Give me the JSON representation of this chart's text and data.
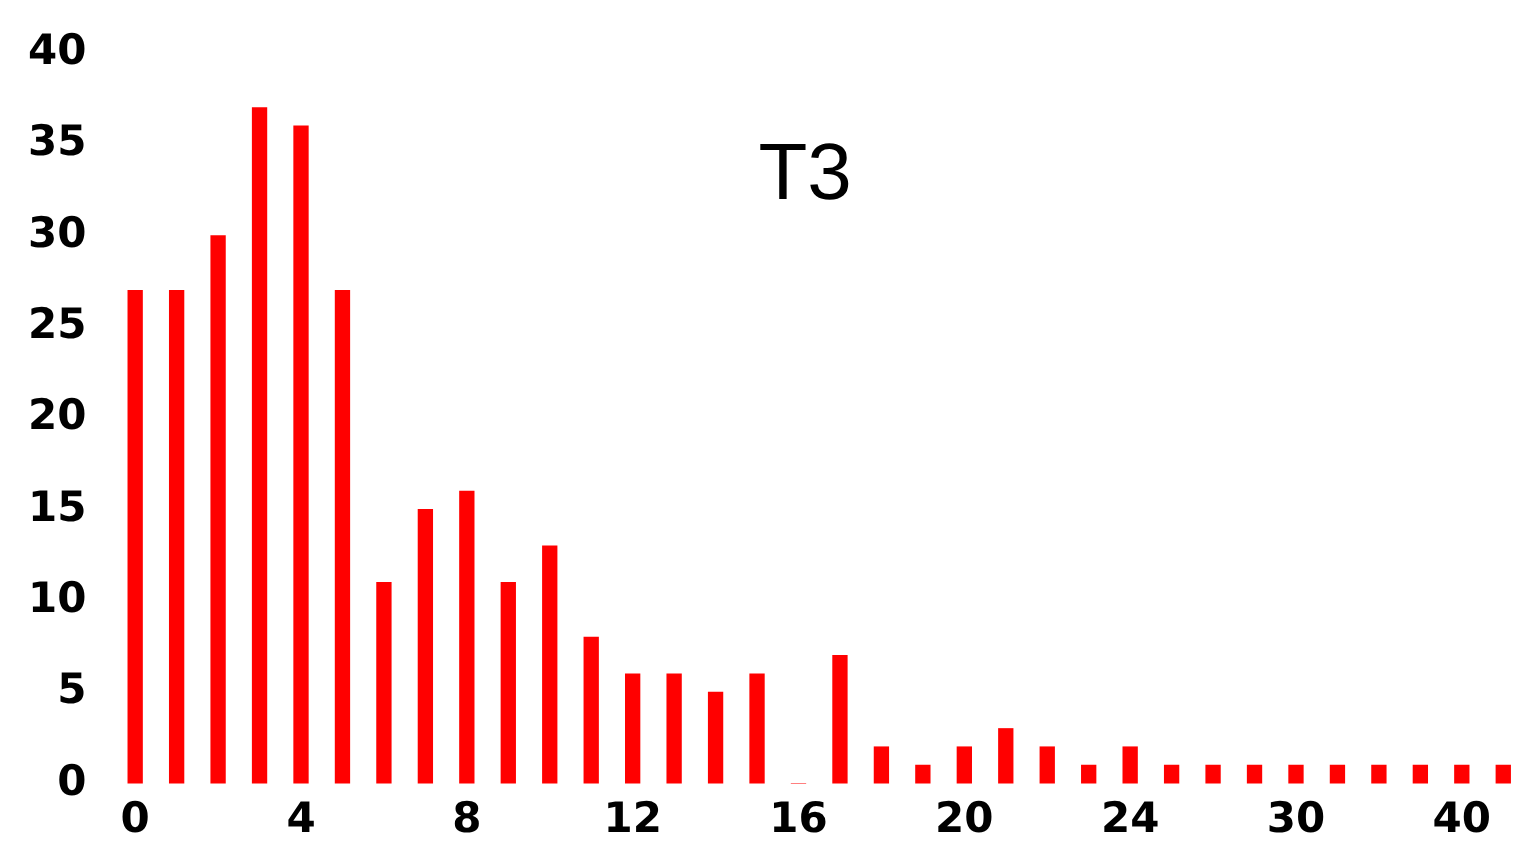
{
  "chart_data": {
    "type": "bar",
    "title": "T3",
    "categories": [
      "0",
      null,
      null,
      null,
      "4",
      null,
      null,
      null,
      "8",
      null,
      null,
      null,
      "12",
      null,
      null,
      null,
      "16",
      null,
      null,
      null,
      "20",
      null,
      null,
      null,
      "24",
      null,
      null,
      null,
      "30",
      null,
      null,
      null,
      "40",
      null
    ],
    "values": [
      27,
      27,
      30,
      37,
      36,
      27,
      11,
      15,
      16,
      11,
      13,
      8,
      6,
      6,
      5,
      6,
      0,
      7,
      2,
      1,
      2,
      3,
      2,
      1,
      2,
      1,
      1,
      1,
      1,
      1,
      1,
      1,
      1,
      1
    ],
    "color": "#ff0000",
    "ylim": [
      0,
      40
    ],
    "yticks": [
      0,
      5,
      10,
      15,
      20,
      25,
      30,
      35,
      40
    ],
    "grid": false,
    "legend": false
  }
}
